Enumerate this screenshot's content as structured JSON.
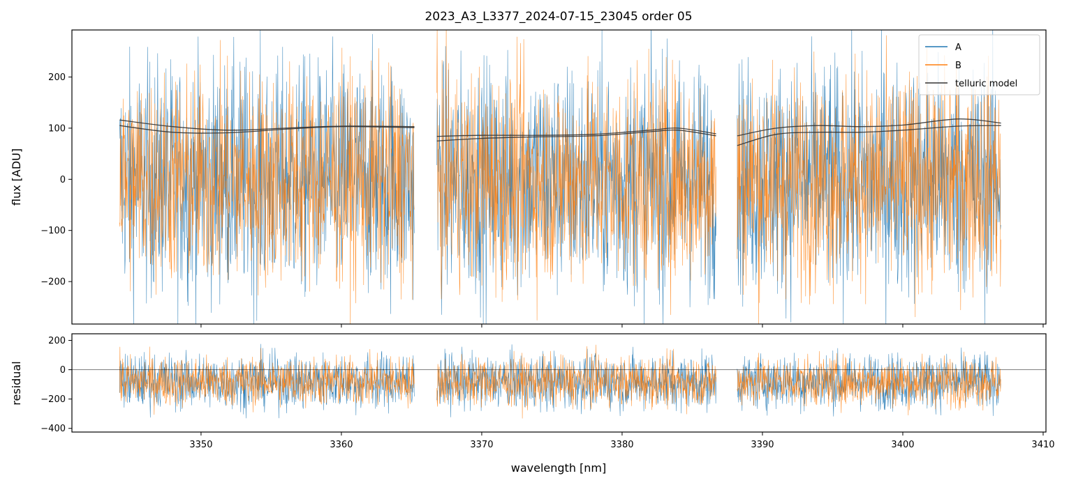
{
  "chart_data": [
    {
      "type": "line",
      "title": "2023_A3_L3377_2024-07-15_23045  order 05",
      "xlabel": "",
      "ylabel": "flux [ADU]",
      "xlim": [
        3340.8,
        3410.2
      ],
      "ylim": [
        -283,
        292
      ],
      "yticks": [
        -200,
        -100,
        0,
        100,
        200
      ],
      "ytick_labels": [
        "−200",
        "−100",
        "0",
        "100",
        "200"
      ],
      "xticks": [
        3350,
        3360,
        3370,
        3380,
        3390,
        3400,
        3410
      ],
      "show_xtick_labels": false,
      "grid": false,
      "legend": {
        "placement": "top-right",
        "entries": [
          {
            "label": "A",
            "color": "#1f77b4"
          },
          {
            "label": "B",
            "color": "#ff7f0e"
          },
          {
            "label": "telluric model",
            "color": "#333333"
          }
        ]
      },
      "segments": [
        {
          "x_start": 3344.2,
          "x_end": 3365.2
        },
        {
          "x_start": 3366.8,
          "x_end": 3386.7
        },
        {
          "x_start": 3388.2,
          "x_end": 3407.0
        }
      ],
      "series": [
        {
          "name": "A",
          "color": "#1f77b4",
          "noise_level": 115,
          "center": 0
        },
        {
          "name": "B",
          "color": "#ff7f0e",
          "noise_level": 105,
          "center": 0
        },
        {
          "name": "telluric model",
          "color": "#333333",
          "curves": [
            {
              "x": [
                3344.2,
                3348,
                3352,
                3356,
                3360,
                3365.2
              ],
              "y": [
                116,
                103,
                96,
                100,
                104,
                103
              ]
            },
            {
              "x": [
                3344.2,
                3348,
                3352,
                3356,
                3360,
                3365.2
              ],
              "y": [
                105,
                92,
                91,
                98,
                103,
                101
              ]
            },
            {
              "x": [
                3366.8,
                3370,
                3374,
                3378,
                3382,
                3384,
                3386.7
              ],
              "y": [
                84,
                86,
                86,
                88,
                96,
                100,
                89
              ]
            },
            {
              "x": [
                3366.8,
                3370,
                3374,
                3378,
                3382,
                3384,
                3386.7
              ],
              "y": [
                75,
                80,
                83,
                85,
                93,
                96,
                85
              ]
            },
            {
              "x": [
                3388.2,
                3391,
                3394,
                3397,
                3400,
                3404,
                3407.0
              ],
              "y": [
                85,
                100,
                105,
                103,
                106,
                118,
                110
              ]
            },
            {
              "x": [
                3388.2,
                3391,
                3394,
                3397,
                3400,
                3404,
                3407.0
              ],
              "y": [
                66,
                88,
                92,
                92,
                96,
                104,
                105
              ]
            }
          ]
        }
      ]
    },
    {
      "type": "line",
      "title": "",
      "xlabel": "wavelength [nm]",
      "ylabel": "residual",
      "xlim": [
        3340.8,
        3410.2
      ],
      "ylim": [
        -425,
        245
      ],
      "yticks": [
        -400,
        -200,
        0,
        200
      ],
      "ytick_labels": [
        "−400",
        "−200",
        "0",
        "200"
      ],
      "xticks": [
        3350,
        3360,
        3370,
        3380,
        3390,
        3400,
        3410
      ],
      "xtick_labels": [
        "3350",
        "3360",
        "3370",
        "3380",
        "3390",
        "3400",
        "3410"
      ],
      "grid": false,
      "reference_line": 0,
      "series": [
        {
          "name": "A",
          "color": "#1f77b4",
          "noise_level": 95,
          "center": -80
        },
        {
          "name": "B",
          "color": "#ff7f0e",
          "noise_level": 85,
          "center": -80
        }
      ]
    }
  ]
}
